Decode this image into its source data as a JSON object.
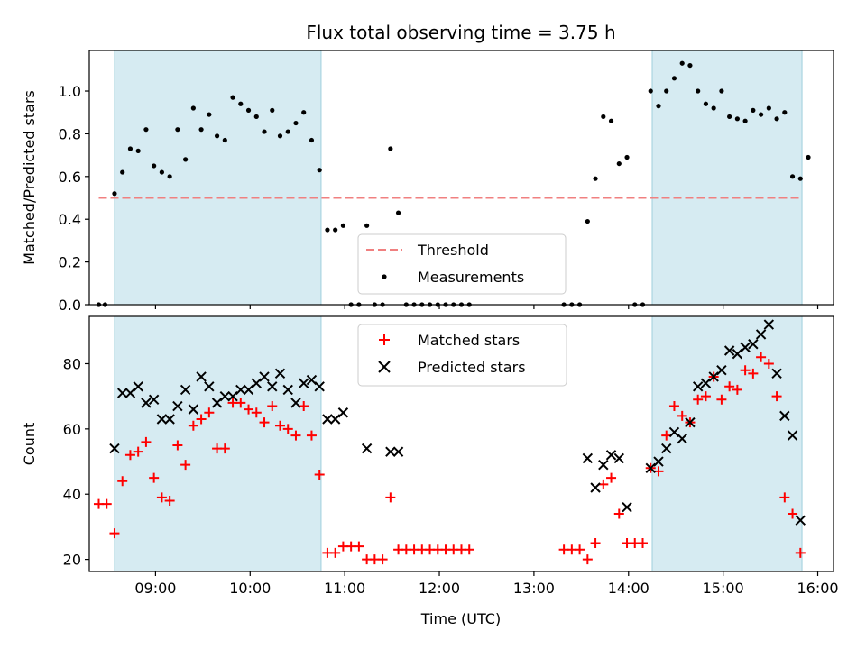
{
  "figure": {
    "title": "Flux total observing time = 3.75 h",
    "xlabel": "Time (UTC)"
  },
  "chart_data": [
    {
      "type": "scatter",
      "title": "Flux total observing time = 3.75 h",
      "ylabel": "Matched/Predicted stars",
      "xlabel": "",
      "xlim": [
        "08:18",
        "16:10"
      ],
      "ylim": [
        0,
        1.19
      ],
      "yticks": [
        "0.0",
        "0.2",
        "0.4",
        "0.6",
        "0.8",
        "1.0"
      ],
      "shaded_intervals": [
        [
          "08:34",
          "10:45"
        ],
        [
          "14:15",
          "15:50"
        ]
      ],
      "threshold": {
        "name": "Threshold",
        "y": 0.5,
        "x_range": [
          "08:24",
          "15:50"
        ],
        "color": "#f08080",
        "style": "dashed"
      },
      "legend": {
        "placement": "lower-center",
        "entries": [
          "Threshold",
          "Measurements"
        ]
      },
      "series": [
        {
          "name": "Measurements",
          "marker": "dot",
          "color": "#000000",
          "points": [
            [
              "08:24",
              0.0
            ],
            [
              "08:28",
              0.0
            ],
            [
              "08:34",
              0.52
            ],
            [
              "08:39",
              0.62
            ],
            [
              "08:44",
              0.73
            ],
            [
              "08:49",
              0.72
            ],
            [
              "08:54",
              0.82
            ],
            [
              "08:59",
              0.65
            ],
            [
              "09:04",
              0.62
            ],
            [
              "09:09",
              0.6
            ],
            [
              "09:14",
              0.82
            ],
            [
              "09:19",
              0.68
            ],
            [
              "09:24",
              0.92
            ],
            [
              "09:29",
              0.82
            ],
            [
              "09:34",
              0.89
            ],
            [
              "09:39",
              0.79
            ],
            [
              "09:44",
              0.77
            ],
            [
              "09:49",
              0.97
            ],
            [
              "09:54",
              0.94
            ],
            [
              "09:59",
              0.91
            ],
            [
              "10:04",
              0.88
            ],
            [
              "10:09",
              0.81
            ],
            [
              "10:14",
              0.91
            ],
            [
              "10:19",
              0.79
            ],
            [
              "10:24",
              0.81
            ],
            [
              "10:29",
              0.85
            ],
            [
              "10:34",
              0.9
            ],
            [
              "10:39",
              0.77
            ],
            [
              "10:44",
              0.63
            ],
            [
              "10:49",
              0.35
            ],
            [
              "10:54",
              0.35
            ],
            [
              "10:59",
              0.37
            ],
            [
              "11:04",
              0.0
            ],
            [
              "11:09",
              0.0
            ],
            [
              "11:14",
              0.37
            ],
            [
              "11:19",
              0.0
            ],
            [
              "11:24",
              0.0
            ],
            [
              "11:29",
              0.73
            ],
            [
              "11:34",
              0.43
            ],
            [
              "11:39",
              0.0
            ],
            [
              "11:44",
              0.0
            ],
            [
              "11:49",
              0.0
            ],
            [
              "11:54",
              0.0
            ],
            [
              "11:59",
              0.0
            ],
            [
              "12:04",
              0.0
            ],
            [
              "12:09",
              0.0
            ],
            [
              "12:14",
              0.0
            ],
            [
              "12:19",
              0.0
            ],
            [
              "13:19",
              0.0
            ],
            [
              "13:24",
              0.0
            ],
            [
              "13:29",
              0.0
            ],
            [
              "13:34",
              0.39
            ],
            [
              "13:39",
              0.59
            ],
            [
              "13:44",
              0.88
            ],
            [
              "13:49",
              0.86
            ],
            [
              "13:54",
              0.66
            ],
            [
              "13:59",
              0.69
            ],
            [
              "14:04",
              0.0
            ],
            [
              "14:09",
              0.0
            ],
            [
              "14:14",
              1.0
            ],
            [
              "14:19",
              0.93
            ],
            [
              "14:24",
              1.0
            ],
            [
              "14:29",
              1.06
            ],
            [
              "14:34",
              1.13
            ],
            [
              "14:39",
              1.12
            ],
            [
              "14:44",
              1.0
            ],
            [
              "14:49",
              0.94
            ],
            [
              "14:54",
              0.92
            ],
            [
              "14:59",
              1.0
            ],
            [
              "15:04",
              0.88
            ],
            [
              "15:09",
              0.87
            ],
            [
              "15:14",
              0.86
            ],
            [
              "15:19",
              0.91
            ],
            [
              "15:24",
              0.89
            ],
            [
              "15:29",
              0.92
            ],
            [
              "15:34",
              0.87
            ],
            [
              "15:39",
              0.9
            ],
            [
              "15:44",
              0.6
            ],
            [
              "15:49",
              0.59
            ],
            [
              "15:54",
              0.69
            ]
          ]
        }
      ]
    },
    {
      "type": "scatter",
      "title": "",
      "ylabel": "Count",
      "xlabel": "Time (UTC)",
      "xlim": [
        "08:18",
        "16:10"
      ],
      "ylim": [
        16.3,
        94.5
      ],
      "yticks": [
        "20",
        "40",
        "60",
        "80"
      ],
      "xticks": [
        "09:00",
        "10:00",
        "11:00",
        "12:00",
        "13:00",
        "14:00",
        "15:00",
        "16:00"
      ],
      "shaded_intervals": [
        [
          "08:34",
          "10:45"
        ],
        [
          "14:15",
          "15:50"
        ]
      ],
      "legend": {
        "placement": "upper-center",
        "entries": [
          "Matched stars",
          "Predicted stars"
        ]
      },
      "series": [
        {
          "name": "Matched stars",
          "marker": "plus",
          "color": "#ff0000",
          "points": [
            [
              "08:24",
              37
            ],
            [
              "08:29",
              37
            ],
            [
              "08:34",
              28
            ],
            [
              "08:39",
              44
            ],
            [
              "08:44",
              52
            ],
            [
              "08:49",
              53
            ],
            [
              "08:54",
              56
            ],
            [
              "08:59",
              45
            ],
            [
              "09:04",
              39
            ],
            [
              "09:09",
              38
            ],
            [
              "09:14",
              55
            ],
            [
              "09:19",
              49
            ],
            [
              "09:24",
              61
            ],
            [
              "09:29",
              63
            ],
            [
              "09:34",
              65
            ],
            [
              "09:39",
              54
            ],
            [
              "09:44",
              54
            ],
            [
              "09:49",
              68
            ],
            [
              "09:54",
              68
            ],
            [
              "09:59",
              66
            ],
            [
              "10:04",
              65
            ],
            [
              "10:09",
              62
            ],
            [
              "10:14",
              67
            ],
            [
              "10:19",
              61
            ],
            [
              "10:24",
              60
            ],
            [
              "10:29",
              58
            ],
            [
              "10:34",
              67
            ],
            [
              "10:39",
              58
            ],
            [
              "10:44",
              46
            ],
            [
              "10:49",
              22
            ],
            [
              "10:54",
              22
            ],
            [
              "10:59",
              24
            ],
            [
              "11:04",
              24
            ],
            [
              "11:09",
              24
            ],
            [
              "11:14",
              20
            ],
            [
              "11:19",
              20
            ],
            [
              "11:24",
              20
            ],
            [
              "11:29",
              39
            ],
            [
              "11:34",
              23
            ],
            [
              "11:39",
              23
            ],
            [
              "11:44",
              23
            ],
            [
              "11:49",
              23
            ],
            [
              "11:54",
              23
            ],
            [
              "11:59",
              23
            ],
            [
              "12:04",
              23
            ],
            [
              "12:09",
              23
            ],
            [
              "12:14",
              23
            ],
            [
              "12:19",
              23
            ],
            [
              "13:19",
              23
            ],
            [
              "13:24",
              23
            ],
            [
              "13:29",
              23
            ],
            [
              "13:34",
              20
            ],
            [
              "13:39",
              25
            ],
            [
              "13:44",
              43
            ],
            [
              "13:49",
              45
            ],
            [
              "13:54",
              34
            ],
            [
              "13:59",
              25
            ],
            [
              "14:04",
              25
            ],
            [
              "14:09",
              25
            ],
            [
              "14:14",
              48
            ],
            [
              "14:19",
              47
            ],
            [
              "14:24",
              58
            ],
            [
              "14:29",
              67
            ],
            [
              "14:34",
              64
            ],
            [
              "14:39",
              62
            ],
            [
              "14:44",
              69
            ],
            [
              "14:49",
              70
            ],
            [
              "14:54",
              76
            ],
            [
              "14:59",
              69
            ],
            [
              "15:04",
              73
            ],
            [
              "15:09",
              72
            ],
            [
              "15:14",
              78
            ],
            [
              "15:19",
              77
            ],
            [
              "15:24",
              82
            ],
            [
              "15:29",
              80
            ],
            [
              "15:34",
              70
            ],
            [
              "15:39",
              39
            ],
            [
              "15:44",
              34
            ],
            [
              "15:49",
              22
            ]
          ]
        },
        {
          "name": "Predicted stars",
          "marker": "x",
          "color": "#000000",
          "points": [
            [
              "08:34",
              54
            ],
            [
              "08:39",
              71
            ],
            [
              "08:44",
              71
            ],
            [
              "08:49",
              73
            ],
            [
              "08:54",
              68
            ],
            [
              "08:59",
              69
            ],
            [
              "09:04",
              63
            ],
            [
              "09:09",
              63
            ],
            [
              "09:14",
              67
            ],
            [
              "09:19",
              72
            ],
            [
              "09:24",
              66
            ],
            [
              "09:29",
              76
            ],
            [
              "09:34",
              73
            ],
            [
              "09:39",
              68
            ],
            [
              "09:44",
              70
            ],
            [
              "09:49",
              70
            ],
            [
              "09:54",
              72
            ],
            [
              "09:59",
              72
            ],
            [
              "10:04",
              74
            ],
            [
              "10:09",
              76
            ],
            [
              "10:14",
              73
            ],
            [
              "10:19",
              77
            ],
            [
              "10:24",
              72
            ],
            [
              "10:29",
              68
            ],
            [
              "10:34",
              74
            ],
            [
              "10:39",
              75
            ],
            [
              "10:44",
              73
            ],
            [
              "10:49",
              63
            ],
            [
              "10:54",
              63
            ],
            [
              "10:59",
              65
            ],
            [
              "11:14",
              54
            ],
            [
              "11:29",
              53
            ],
            [
              "11:34",
              53
            ],
            [
              "13:34",
              51
            ],
            [
              "13:39",
              42
            ],
            [
              "13:44",
              49
            ],
            [
              "13:49",
              52
            ],
            [
              "13:54",
              51
            ],
            [
              "13:59",
              36
            ],
            [
              "14:14",
              48
            ],
            [
              "14:19",
              50
            ],
            [
              "14:24",
              54
            ],
            [
              "14:29",
              59
            ],
            [
              "14:34",
              57
            ],
            [
              "14:39",
              62
            ],
            [
              "14:44",
              73
            ],
            [
              "14:49",
              74
            ],
            [
              "14:54",
              76
            ],
            [
              "14:59",
              78
            ],
            [
              "15:04",
              84
            ],
            [
              "15:09",
              83
            ],
            [
              "15:14",
              85
            ],
            [
              "15:19",
              86
            ],
            [
              "15:24",
              89
            ],
            [
              "15:29",
              92
            ],
            [
              "15:34",
              77
            ],
            [
              "15:39",
              64
            ],
            [
              "15:44",
              58
            ],
            [
              "15:49",
              32
            ]
          ]
        }
      ]
    }
  ]
}
